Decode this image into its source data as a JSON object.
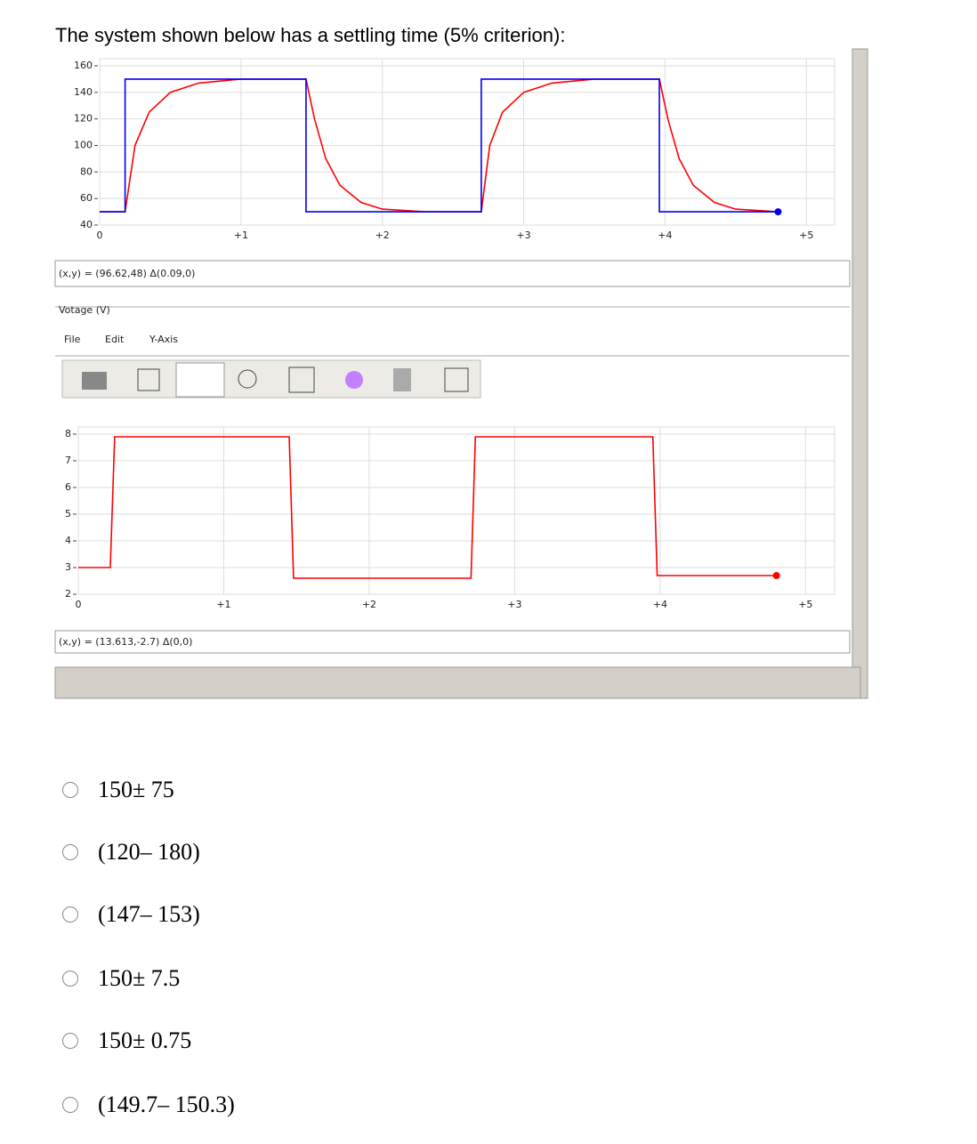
{
  "question": "The system shown below has a settling time (5% criterion):",
  "plot1": {
    "ylim": [
      40,
      160
    ],
    "yticks": [
      160,
      140,
      120,
      100,
      80,
      60,
      40
    ],
    "xlim": [
      0,
      5.2
    ],
    "xticks": [
      0,
      {
        "value": 1,
        "label": "+1"
      },
      {
        "value": 2,
        "label": "+2"
      },
      {
        "value": 3,
        "label": "+3"
      },
      {
        "value": 4,
        "label": "+4"
      },
      {
        "value": 5,
        "label": "+5"
      }
    ],
    "setpoint": {
      "color": "#0000ee",
      "x": [
        0,
        0.18,
        0.18,
        1.46,
        1.46,
        2.7,
        2.7,
        3.96,
        3.96,
        4.8
      ],
      "y": [
        50,
        50,
        150,
        150,
        50,
        50,
        150,
        150,
        50,
        50
      ]
    },
    "response": {
      "color": "#ff0000",
      "x": [
        0,
        0.18,
        0.25,
        0.35,
        0.5,
        0.7,
        1.0,
        1.46,
        1.52,
        1.6,
        1.7,
        1.85,
        2.0,
        2.3,
        2.7,
        2.76,
        2.85,
        3.0,
        3.2,
        3.5,
        3.96,
        4.02,
        4.1,
        4.2,
        4.35,
        4.5,
        4.8
      ],
      "y": [
        50,
        50,
        100,
        125,
        140,
        147,
        150,
        150,
        120,
        90,
        70,
        57,
        52,
        50,
        50,
        100,
        125,
        140,
        147,
        150,
        150,
        120,
        90,
        70,
        57,
        52,
        50
      ]
    }
  },
  "status1": "(x,y) = (96.62,48) Δ(0.09,0)",
  "panel_title": "Votage (V)",
  "menu": [
    "File",
    "Edit",
    "Y-Axis"
  ],
  "plot2": {
    "ylim": [
      2,
      8
    ],
    "yticks": [
      8,
      7,
      6,
      5,
      4,
      3,
      2
    ],
    "xlim": [
      0,
      5.2
    ],
    "xticks": [
      0,
      {
        "value": 1,
        "label": "+1"
      },
      {
        "value": 2,
        "label": "+2"
      },
      {
        "value": 3,
        "label": "+3"
      },
      {
        "value": 4,
        "label": "+4"
      },
      {
        "value": 5,
        "label": "+5"
      }
    ],
    "signal": {
      "color": "#ff0000",
      "x": [
        0,
        0.22,
        0.25,
        1.45,
        1.48,
        2.7,
        2.73,
        3.95,
        3.98,
        4.8
      ],
      "y": [
        3,
        3,
        7.9,
        7.9,
        2.6,
        2.6,
        7.9,
        7.9,
        2.7,
        2.7
      ]
    }
  },
  "status2": "(x,y) = (13.613,-2.7) Δ(0,0)",
  "options": [
    "150± 75",
    "(120– 180)",
    "(147– 153)",
    "150± 7.5",
    "150± 0.75",
    "(149.7– 150.3)"
  ]
}
